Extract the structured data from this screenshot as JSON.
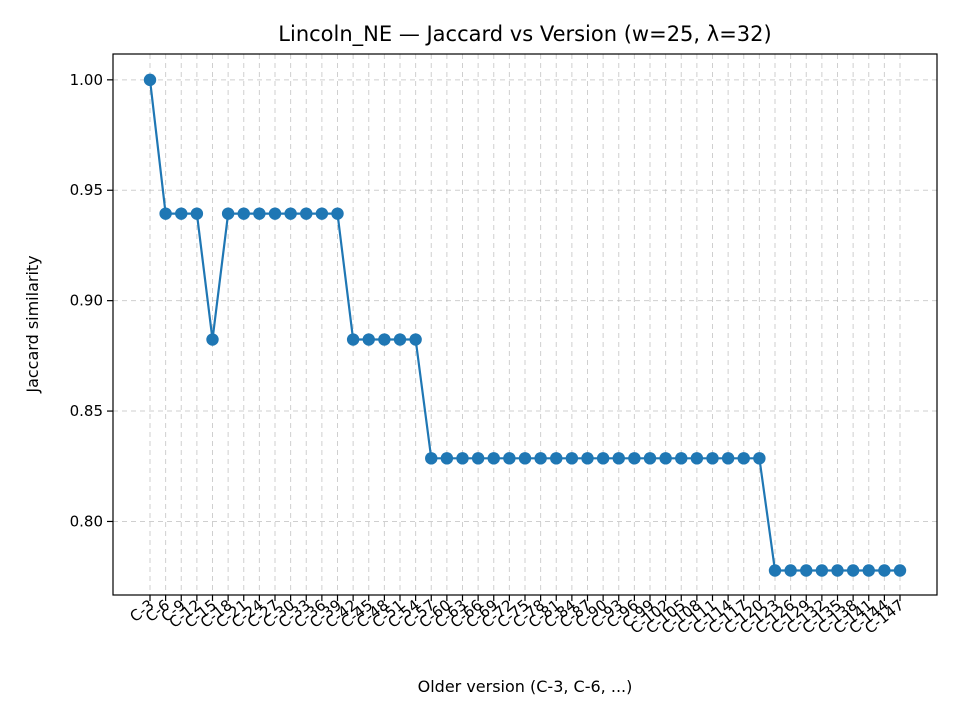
{
  "chart_data": {
    "type": "line",
    "title": "Lincoln_NE — Jaccard vs Version (w=25, λ=32)",
    "xlabel": "Older version (C-3, C-6, ...)",
    "ylabel": "Jaccard similarity",
    "ylim": [
      0.7667,
      1.0117
    ],
    "yticks": [
      0.8,
      0.85,
      0.9,
      0.95,
      1.0
    ],
    "ytick_labels": [
      "0.80",
      "0.85",
      "0.90",
      "0.95",
      "1.00"
    ],
    "grid": true,
    "x": [
      "C-3",
      "C-6",
      "C-9",
      "C-12",
      "C-15",
      "C-18",
      "C-21",
      "C-24",
      "C-27",
      "C-30",
      "C-33",
      "C-36",
      "C-39",
      "C-42",
      "C-45",
      "C-48",
      "C-51",
      "C-54",
      "C-57",
      "C-60",
      "C-63",
      "C-66",
      "C-69",
      "C-72",
      "C-75",
      "C-78",
      "C-81",
      "C-84",
      "C-87",
      "C-90",
      "C-93",
      "C-96",
      "C-99",
      "C-102",
      "C-105",
      "C-108",
      "C-111",
      "C-114",
      "C-117",
      "C-120",
      "C-123",
      "C-126",
      "C-129",
      "C-132",
      "C-135",
      "C-138",
      "C-141",
      "C-144",
      "C-147"
    ],
    "values": [
      1.0,
      0.9394,
      0.9394,
      0.9394,
      0.8824,
      0.9394,
      0.9394,
      0.9394,
      0.9394,
      0.9394,
      0.9394,
      0.9394,
      0.9394,
      0.8824,
      0.8824,
      0.8824,
      0.8824,
      0.8824,
      0.8286,
      0.8286,
      0.8286,
      0.8286,
      0.8286,
      0.8286,
      0.8286,
      0.8286,
      0.8286,
      0.8286,
      0.8286,
      0.8286,
      0.8286,
      0.8286,
      0.8286,
      0.8286,
      0.8286,
      0.8286,
      0.8286,
      0.8286,
      0.8286,
      0.8286,
      0.7778,
      0.7778,
      0.7778,
      0.7778,
      0.7778,
      0.7778,
      0.7778,
      0.7778,
      0.7778
    ],
    "colors": {
      "series": "#1f77b4"
    }
  }
}
